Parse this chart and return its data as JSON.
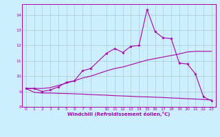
{
  "bg_color": "#cceeff",
  "grid_color": "#aacccc",
  "line_color": "#aa00aa",
  "xlabel": "Windchill (Refroidissement éolien,°C)",
  "xlim": [
    -0.5,
    23.5
  ],
  "ylim": [
    8.0,
    14.7
  ],
  "yticks": [
    8,
    9,
    10,
    11,
    12,
    13,
    14
  ],
  "xticks": [
    0,
    1,
    2,
    3,
    4,
    5,
    6,
    7,
    8,
    10,
    11,
    12,
    13,
    14,
    15,
    16,
    17,
    18,
    19,
    20,
    21,
    22,
    23
  ],
  "line1_x": [
    0,
    1,
    2,
    3,
    4,
    5,
    6,
    7,
    8,
    10,
    11,
    12,
    13,
    14,
    15,
    16,
    17,
    18,
    19,
    20,
    21,
    22,
    23
  ],
  "line1_y": [
    9.2,
    9.2,
    9.0,
    9.1,
    9.3,
    9.6,
    9.7,
    10.35,
    10.5,
    11.5,
    11.8,
    11.55,
    11.95,
    12.0,
    14.35,
    12.9,
    12.5,
    12.45,
    10.85,
    10.8,
    10.15,
    8.65,
    8.4
  ],
  "line2_x": [
    0,
    2,
    3,
    4,
    5,
    6,
    7,
    8,
    10,
    11,
    12,
    13,
    14,
    15,
    16,
    17,
    18,
    19,
    20,
    21,
    22,
    23
  ],
  "line2_y": [
    9.2,
    9.2,
    9.25,
    9.4,
    9.55,
    9.7,
    9.88,
    10.0,
    10.35,
    10.5,
    10.6,
    10.75,
    10.9,
    11.05,
    11.15,
    11.25,
    11.35,
    11.45,
    11.58,
    11.62,
    11.62,
    11.62
  ],
  "line3_x": [
    0,
    1,
    2,
    3,
    4,
    5,
    6,
    7,
    8,
    10,
    11,
    12,
    13,
    14,
    15,
    16,
    17,
    18,
    19,
    20,
    21,
    22,
    23
  ],
  "line3_y": [
    9.2,
    8.95,
    8.9,
    8.9,
    8.88,
    8.87,
    8.85,
    8.83,
    8.8,
    8.76,
    8.73,
    8.71,
    8.69,
    8.66,
    8.65,
    8.63,
    8.61,
    8.58,
    8.56,
    8.53,
    8.51,
    8.48,
    8.45
  ]
}
